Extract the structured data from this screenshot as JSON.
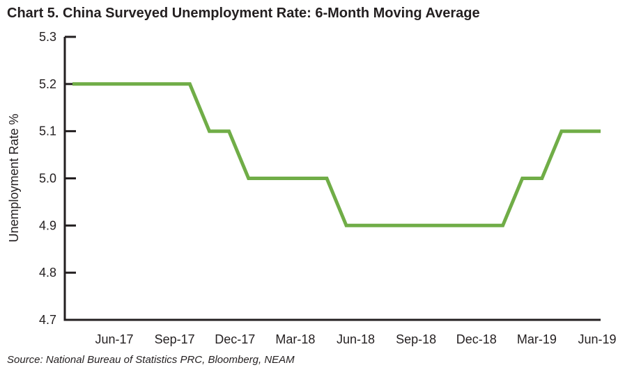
{
  "title": "Chart 5. China Surveyed Unemployment Rate: 6-Month Moving Average",
  "source": "Source: National Bureau of Statistics PRC, Bloomberg, NEAM",
  "chart_data": {
    "type": "line",
    "title": "Chart 5. China Surveyed Unemployment Rate: 6-Month Moving Average",
    "xlabel": "",
    "ylabel": "Unemployment Rate %",
    "ylim": [
      4.7,
      5.3
    ],
    "yticks": [
      "4.7",
      "4.8",
      "4.9",
      "5.0",
      "5.1",
      "5.2",
      "5.3"
    ],
    "xtick_labels": [
      "Jun-17",
      "Sep-17",
      "Dec-17",
      "Mar-18",
      "Jun-18",
      "Sep-18",
      "Dec-18",
      "Mar-19",
      "Jun-19"
    ],
    "grid": false,
    "legend": "none",
    "series": [
      {
        "color": "#70ad47",
        "x": [
          "Mar-17",
          "Apr-17",
          "May-17",
          "Jun-17",
          "Jul-17",
          "Aug-17",
          "Sep-17",
          "Oct-17",
          "Nov-17",
          "Dec-17",
          "Jan-18",
          "Feb-18",
          "Mar-18",
          "Apr-18",
          "May-18",
          "Jun-18",
          "Jul-18",
          "Aug-18",
          "Sep-18",
          "Oct-18",
          "Nov-18",
          "Dec-18",
          "Jan-19",
          "Feb-19",
          "Mar-19",
          "Apr-19",
          "May-19",
          "Jun-19"
        ],
        "values": [
          5.2,
          5.2,
          5.2,
          5.2,
          5.2,
          5.2,
          5.2,
          5.1,
          5.1,
          5.0,
          5.0,
          5.0,
          5.0,
          5.0,
          4.9,
          4.9,
          4.9,
          4.9,
          4.9,
          4.9,
          4.9,
          4.9,
          4.9,
          5.0,
          5.0,
          5.1,
          5.1,
          5.1
        ]
      }
    ]
  }
}
